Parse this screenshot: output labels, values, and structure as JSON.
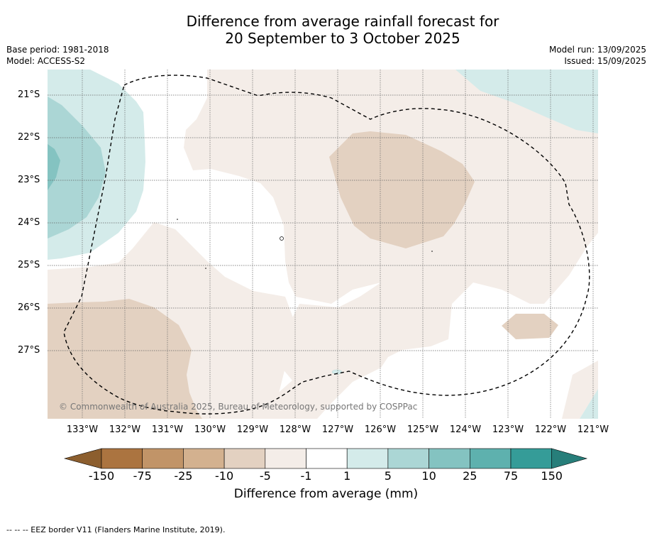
{
  "title": {
    "line1": "Difference from average rainfall forecast for",
    "line2": "20 September to 3 October 2025"
  },
  "meta": {
    "base_period": "Base period: 1981-2018",
    "model": "Model: ACCESS-S2",
    "model_run": "Model run: 13/09/2025",
    "issued": "Issued: 15/09/2025"
  },
  "map": {
    "copyright": "© Commonwealth of Australia 2025, Bureau of Meteorology, supported by COSPPac",
    "x_ticks": [
      "133°W",
      "132°W",
      "131°W",
      "130°W",
      "129°W",
      "128°W",
      "127°W",
      "126°W",
      "125°W",
      "124°W",
      "123°W",
      "122°W",
      "121°W"
    ],
    "y_ticks": [
      "21°S",
      "22°S",
      "23°S",
      "24°S",
      "25°S",
      "26°S",
      "27°S"
    ],
    "grid": true
  },
  "colorbar": {
    "title": "Difference from average (mm)",
    "labels": [
      "-150",
      "-75",
      "-25",
      "-10",
      "-5",
      "-1",
      "1",
      "5",
      "10",
      "25",
      "75",
      "150"
    ],
    "colors": [
      "#ab7440",
      "#c19468",
      "#d3b18f",
      "#e3d1c1",
      "#f4ede8",
      "#ffffff",
      "#d4ebea",
      "#abd6d5",
      "#84c3c1",
      "#5eb1ae",
      "#359c98"
    ],
    "under_color": "#8c5e2e",
    "over_color": "#277e7a"
  },
  "footer": {
    "legend_text": "--  --  -- EEZ border V11 (Flanders Marine Institute, 2019)."
  }
}
